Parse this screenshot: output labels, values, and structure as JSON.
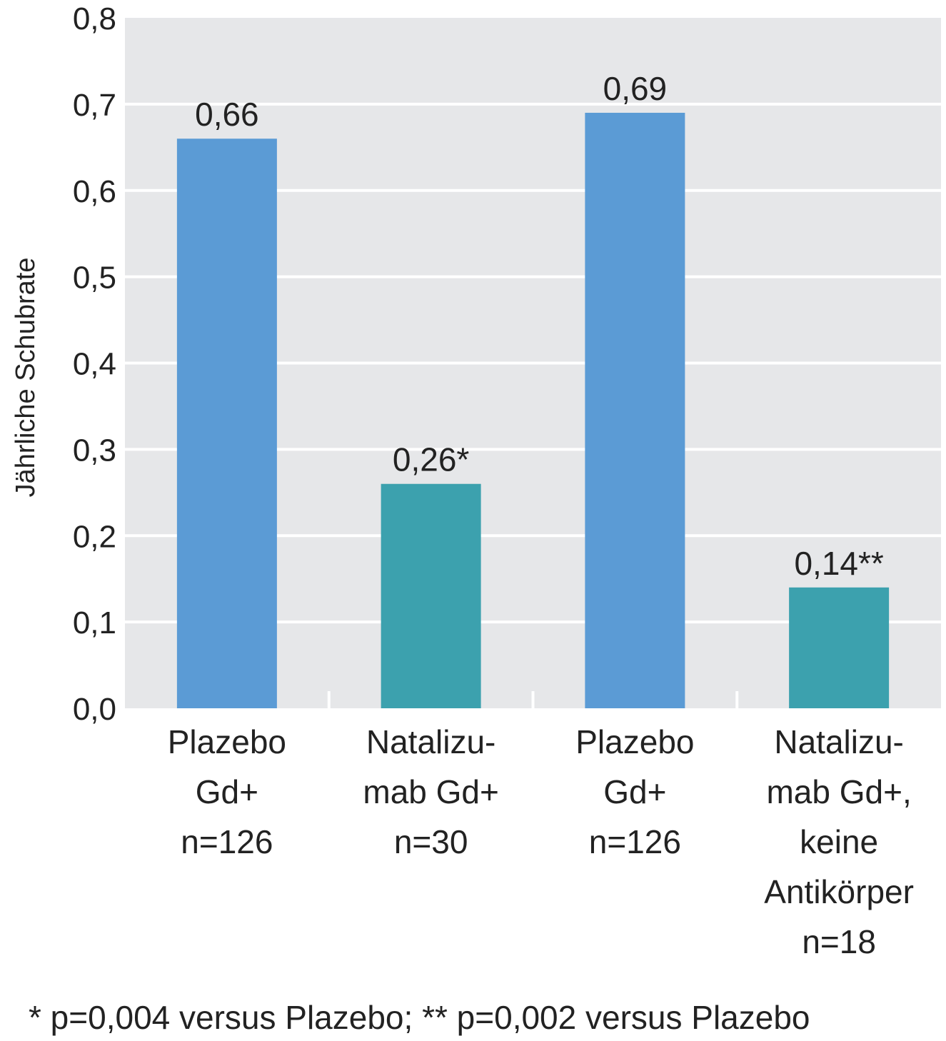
{
  "colors": {
    "plot_background": "#e6e7e9",
    "gridline": "#ffffff",
    "placebo": "#5b9bd5",
    "natalizumab": "#3ca1ae"
  },
  "chart_data": {
    "type": "bar",
    "ylabel": "Jährliche Schubrate",
    "ylim": [
      0,
      0.8
    ],
    "yticks": [
      "0,0",
      "0,1",
      "0,2",
      "0,3",
      "0,4",
      "0,5",
      "0,6",
      "0,7",
      "0,8"
    ],
    "grid": true,
    "categories": [
      [
        "Plazebo",
        "Gd+",
        "n=126"
      ],
      [
        "Natalizu-",
        "mab Gd+",
        "n=30"
      ],
      [
        "Plazebo",
        "Gd+",
        "n=126"
      ],
      [
        "Natalizu-",
        "mab Gd+,",
        "keine",
        "Antikörper",
        "n=18"
      ]
    ],
    "values": [
      0.66,
      0.26,
      0.69,
      0.14
    ],
    "value_labels": [
      "0,66",
      "0,26*",
      "0,69",
      "0,14**"
    ],
    "bar_colors": [
      "#5b9bd5",
      "#3ca1ae",
      "#5b9bd5",
      "#3ca1ae"
    ]
  },
  "footnote": "* p=0,004 versus Plazebo; ** p=0,002 versus Plazebo"
}
